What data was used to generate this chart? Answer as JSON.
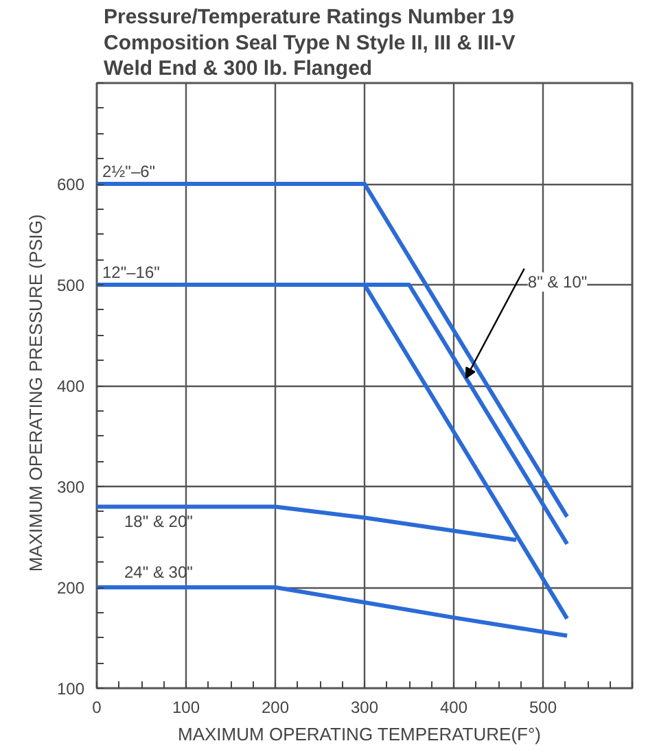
{
  "chart_data": {
    "type": "line",
    "title": "Pressure/Temperature Ratings Number 19\nComposition Seal Type N Style II, III & III-V\nWeld End & 300 lb. Flanged",
    "xlabel": "MAXIMUM  OPERATING  TEMPERATURE(F°)",
    "ylabel": "MAXIMUM  OPERATING  PRESSURE  (PSIG)",
    "xlim": [
      0,
      600
    ],
    "ylim": [
      100,
      700
    ],
    "xticks": [
      0,
      100,
      200,
      300,
      400,
      500
    ],
    "yticks": [
      100,
      200,
      300,
      400,
      500,
      600
    ],
    "grid": true,
    "line_style": "solid",
    "marker": "none",
    "series": [
      {
        "name": "2½\"–6\"",
        "color": "#2b6bd6",
        "x": [
          0,
          300,
          527
        ],
        "values": [
          600,
          600,
          270
        ]
      },
      {
        "name": "8\" & 10\"",
        "color": "#2b6bd6",
        "x": [
          0,
          350,
          527
        ],
        "values": [
          500,
          500,
          243
        ]
      },
      {
        "name": "12\"–16\"",
        "color": "#2b6bd6",
        "x": [
          0,
          300,
          527
        ],
        "values": [
          500,
          500,
          169
        ]
      },
      {
        "name": "18\" & 20\"",
        "color": "#2b6bd6",
        "x": [
          0,
          200,
          300,
          470
        ],
        "values": [
          280,
          280,
          269,
          247
        ]
      },
      {
        "name": "24\" & 30\"",
        "color": "#2b6bd6",
        "x": [
          0,
          200,
          300,
          400,
          527
        ],
        "values": [
          200,
          200,
          185,
          170,
          152
        ]
      }
    ]
  }
}
